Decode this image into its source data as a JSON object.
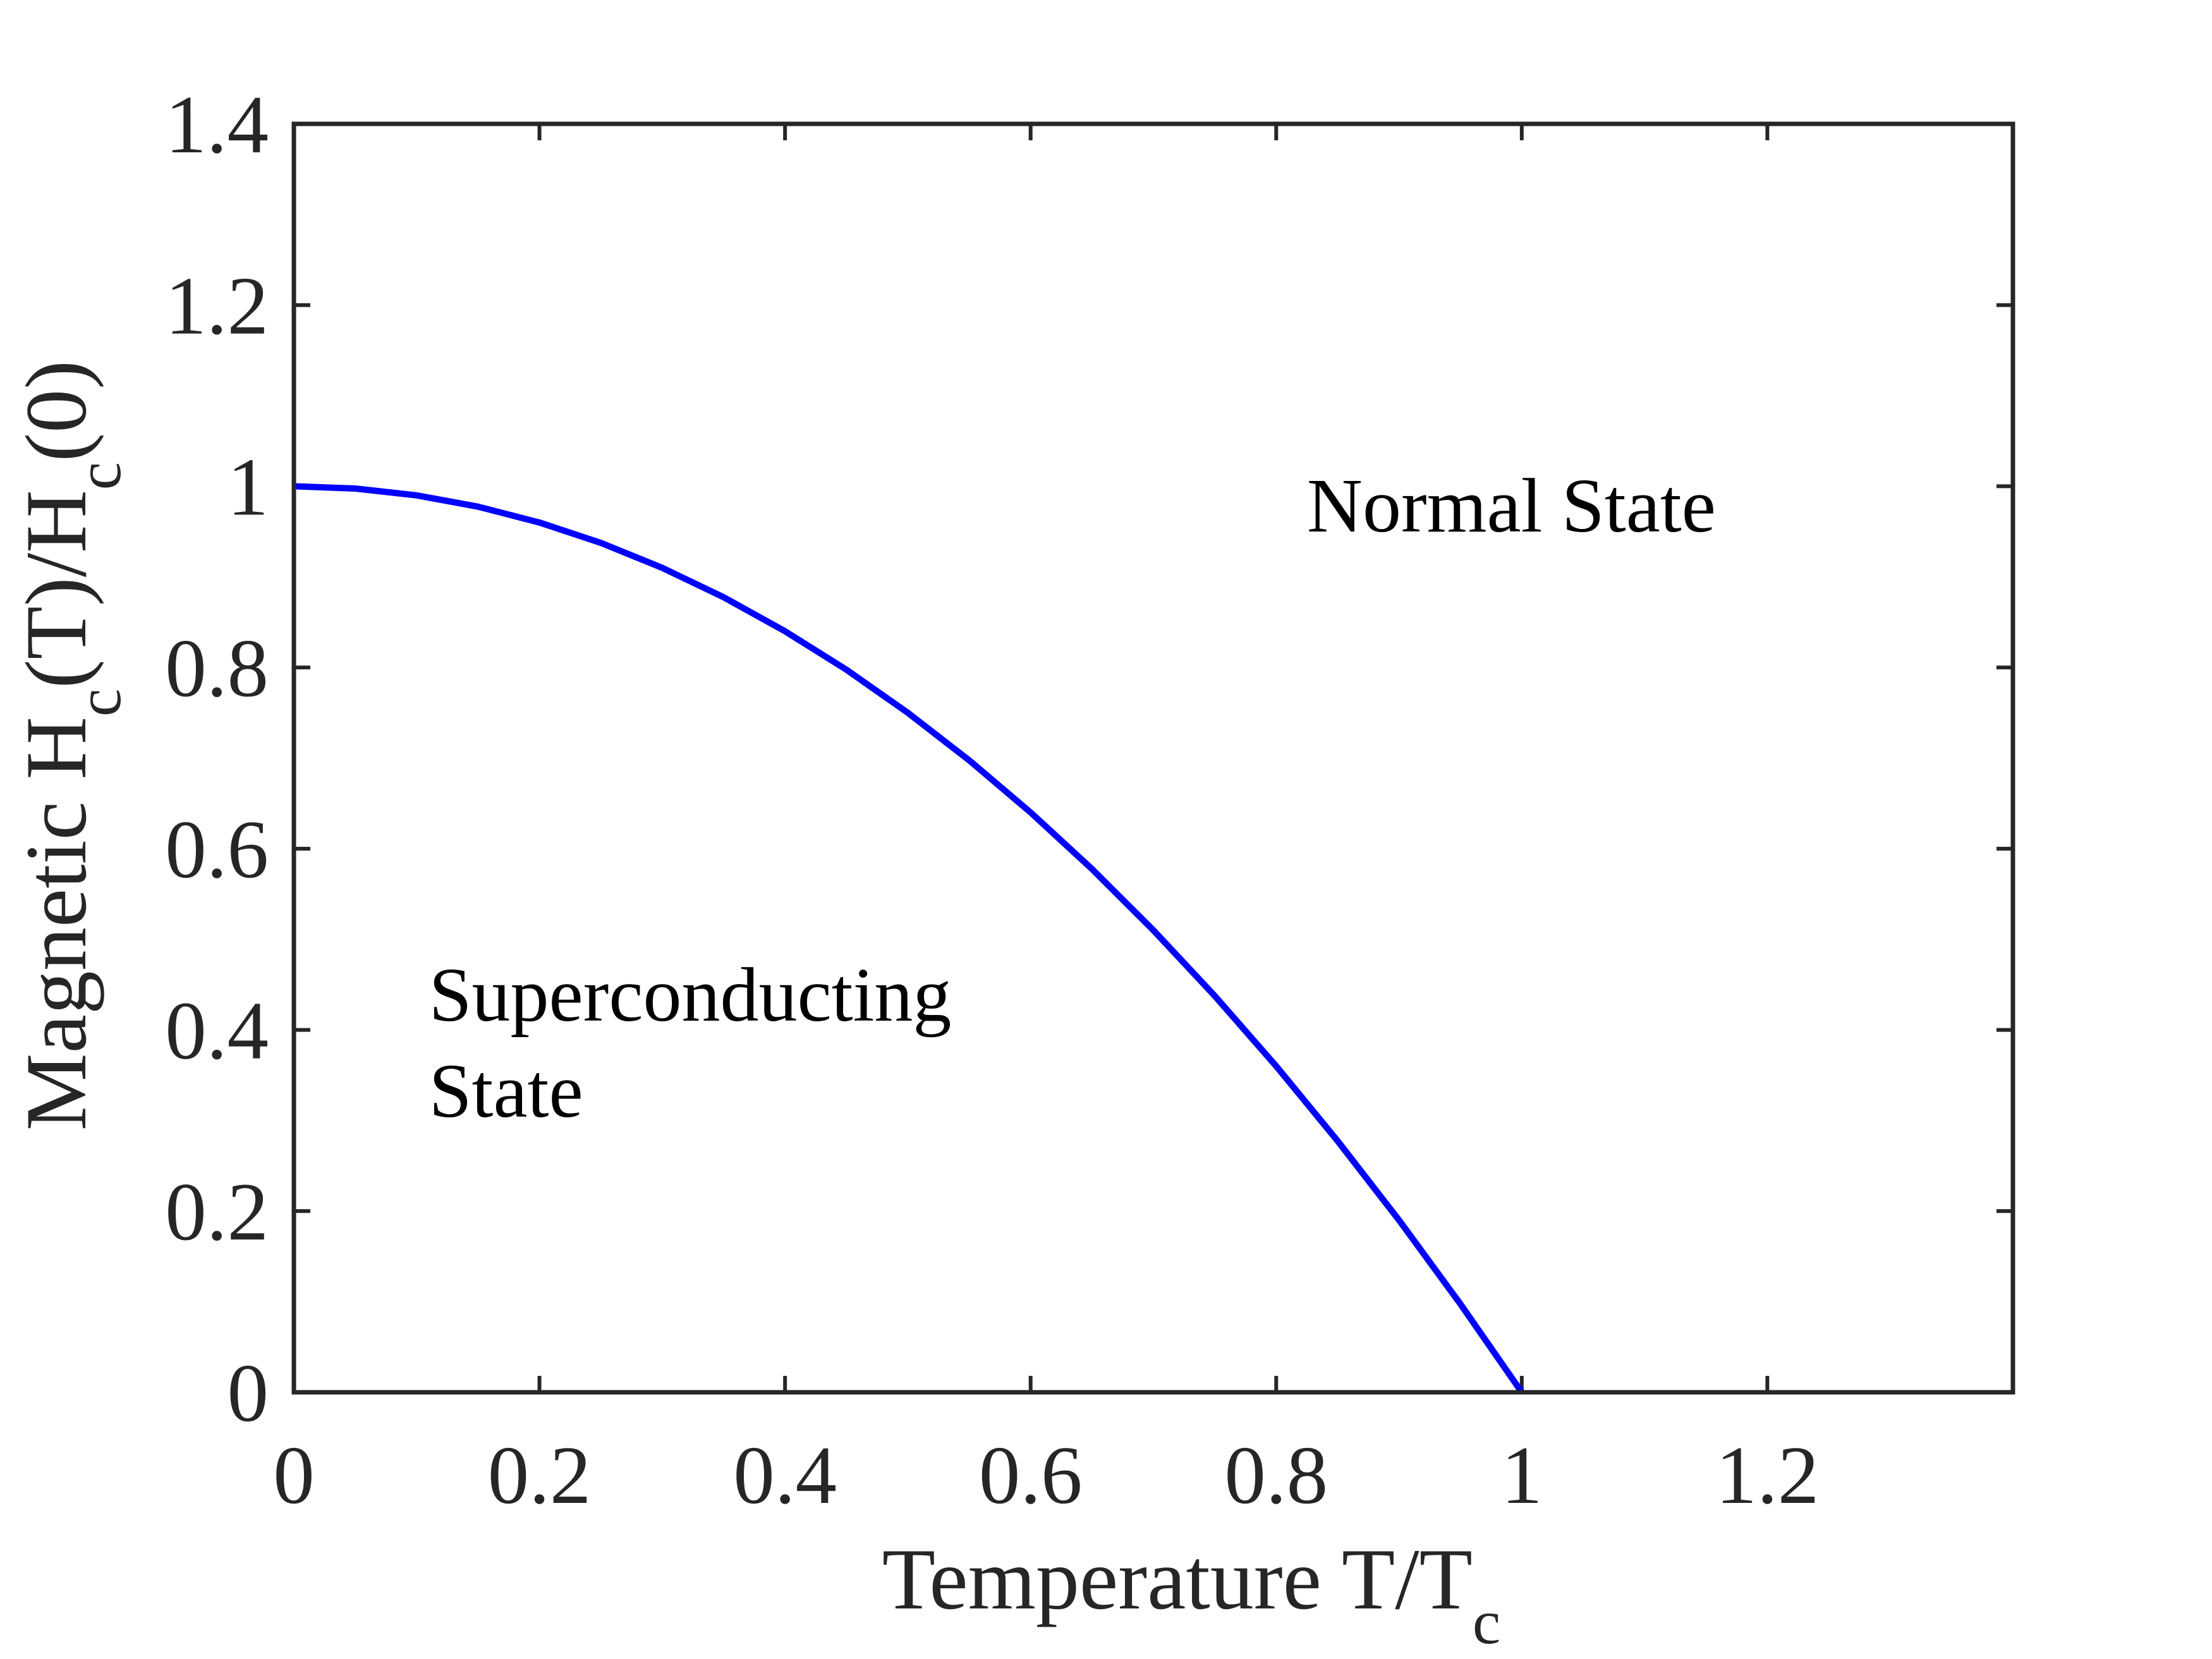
{
  "chart_data": {
    "type": "line",
    "xlabel": {
      "main": "Temperature  T/T",
      "sub": "c"
    },
    "ylabel": {
      "parts": [
        {
          "text": "Magnetic  H",
          "sub": false
        },
        {
          "text": "c",
          "sub": true
        },
        {
          "text": "(T)/H",
          "sub": false
        },
        {
          "text": "c",
          "sub": true
        },
        {
          "text": "(0)",
          "sub": false
        }
      ]
    },
    "xlim": [
      0,
      1.4
    ],
    "ylim": [
      0,
      1.4
    ],
    "xticks": [
      0,
      0.2,
      0.4,
      0.6,
      0.8,
      1,
      1.2
    ],
    "xtick_labels": [
      "0",
      "0.2",
      "0.4",
      "0.6",
      "0.8",
      "1",
      "1.2"
    ],
    "yticks": [
      0,
      0.2,
      0.4,
      0.6,
      0.8,
      1,
      1.2,
      1.4
    ],
    "ytick_labels": [
      "0",
      "0.2",
      "0.4",
      "0.6",
      "0.8",
      "1",
      "1.2",
      "1.4"
    ],
    "grid": false,
    "series": [
      {
        "color": "#0000ff",
        "x": [
          0,
          0.05,
          0.1,
          0.15,
          0.2,
          0.25,
          0.3,
          0.35,
          0.4,
          0.45,
          0.5,
          0.55,
          0.6,
          0.65,
          0.7,
          0.75,
          0.8,
          0.85,
          0.9,
          0.95,
          1.0
        ],
        "y": [
          1.0,
          0.9975,
          0.99,
          0.9775,
          0.96,
          0.9375,
          0.91,
          0.8775,
          0.84,
          0.7975,
          0.75,
          0.6975,
          0.64,
          0.5775,
          0.51,
          0.4375,
          0.36,
          0.2775,
          0.19,
          0.0975,
          0.0
        ]
      }
    ],
    "annotations": [
      {
        "lines": [
          "Normal State"
        ],
        "x": 0.825,
        "y": 0.95
      },
      {
        "lines": [
          "Superconducting",
          "State"
        ],
        "x": 0.11,
        "y": 0.41
      }
    ]
  }
}
